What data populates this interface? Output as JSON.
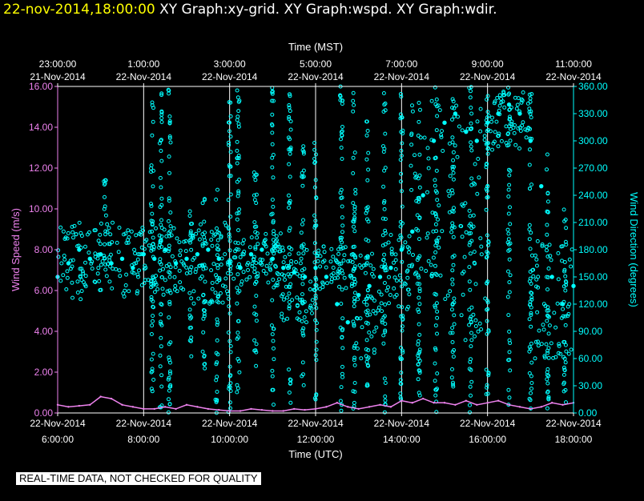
{
  "header": {
    "timestamp": "22-nov-2014,18:00:00",
    "graphs": "XY Graph:xy-grid.  XY Graph:wspd.  XY Graph:wdir."
  },
  "notice": "REAL-TIME DATA, NOT CHECKED FOR QUALITY",
  "colors": {
    "speed": "#ee82ee",
    "direction": "#00ffff",
    "axis_left": "#ee82ee",
    "axis_right": "#00ffff",
    "grid": "#ffffff"
  },
  "chart_data": {
    "type": "scatter",
    "top_axis": {
      "label": "Time (MST)",
      "ticks": [
        [
          "23:00:00",
          "21-Nov-2014"
        ],
        [
          "1:00:00",
          "22-Nov-2014"
        ],
        [
          "3:00:00",
          "22-Nov-2014"
        ],
        [
          "5:00:00",
          "22-Nov-2014"
        ],
        [
          "7:00:00",
          "22-Nov-2014"
        ],
        [
          "9:00:00",
          "22-Nov-2014"
        ],
        [
          "11:00:00",
          "22-Nov-2014"
        ]
      ]
    },
    "bottom_axis": {
      "label": "Time (UTC)",
      "ticks": [
        [
          "22-Nov-2014",
          "6:00:00"
        ],
        [
          "22-Nov-2014",
          "8:00:00"
        ],
        [
          "22-Nov-2014",
          "10:00:00"
        ],
        [
          "22-Nov-2014",
          "12:00:00"
        ],
        [
          "22-Nov-2014",
          "14:00:00"
        ],
        [
          "22-Nov-2014",
          "16:00:00"
        ],
        [
          "22-Nov-2014",
          "18:00:00"
        ]
      ]
    },
    "x_unit": "hours UTC",
    "xlim": [
      6,
      18
    ],
    "grid_hours": [
      8,
      10,
      12,
      14,
      16,
      18
    ],
    "y_left": {
      "label": "Wind Speed (m/s)",
      "ylim": [
        0,
        16
      ],
      "ticks": [
        "0.00",
        "2.00",
        "4.00",
        "6.00",
        "8.00",
        "10.00",
        "12.00",
        "14.00",
        "16.00"
      ]
    },
    "y_right": {
      "label": "Wind Direction (degrees)",
      "ylim": [
        0,
        360
      ],
      "ticks": [
        "0.00",
        "30.00",
        "60.00",
        "90.00",
        "120.00",
        "150.00",
        "180.00",
        "210.00",
        "240.00",
        "270.00",
        "300.00",
        "330.00",
        "360.00"
      ]
    },
    "series": [
      {
        "name": "wspd",
        "axis": "left",
        "x": [
          6.0,
          6.25,
          6.5,
          6.75,
          7.0,
          7.25,
          7.5,
          7.75,
          8.0,
          8.25,
          8.5,
          8.75,
          9.0,
          9.25,
          9.5,
          9.75,
          10.0,
          10.25,
          10.5,
          10.75,
          11.0,
          11.25,
          11.5,
          11.75,
          12.0,
          12.25,
          12.5,
          12.75,
          13.0,
          13.25,
          13.5,
          13.75,
          14.0,
          14.25,
          14.5,
          14.75,
          15.0,
          15.25,
          15.5,
          15.75,
          16.0,
          16.25,
          16.5,
          16.75,
          17.0,
          17.25,
          17.5,
          17.75,
          18.0
        ],
        "values": [
          0.4,
          0.3,
          0.35,
          0.4,
          0.8,
          0.7,
          0.4,
          0.3,
          0.2,
          0.2,
          0.3,
          0.2,
          0.4,
          0.3,
          0.2,
          0.15,
          0.1,
          0.1,
          0.2,
          0.15,
          0.1,
          0.1,
          0.2,
          0.15,
          0.2,
          0.3,
          0.5,
          0.3,
          0.2,
          0.3,
          0.4,
          0.3,
          0.6,
          0.5,
          0.7,
          0.5,
          0.5,
          0.4,
          0.6,
          0.4,
          0.5,
          0.6,
          0.4,
          0.3,
          0.2,
          0.3,
          0.5,
          0.4,
          0.5
        ]
      },
      {
        "name": "wdir",
        "axis": "right",
        "x": [
          6.0,
          6.25,
          6.5,
          6.75,
          7.0,
          7.25,
          7.5,
          7.75,
          8.0,
          8.25,
          8.5,
          8.75,
          9.0,
          9.25,
          9.5,
          9.75,
          10.0,
          10.25,
          10.5,
          10.75,
          11.0,
          11.25,
          11.5,
          11.75,
          12.0,
          12.25,
          12.5,
          12.75,
          13.0,
          13.25,
          13.5,
          13.75,
          14.0,
          14.25,
          14.5,
          14.75,
          15.0,
          15.25,
          15.5,
          15.75,
          16.0,
          16.25,
          16.5,
          16.75,
          17.0,
          17.25,
          17.5,
          17.75,
          18.0
        ],
        "values": [
          150,
          165,
          180,
          170,
          175,
          165,
          170,
          160,
          175,
          170,
          180,
          165,
          170,
          175,
          180,
          170,
          165,
          160,
          175,
          180,
          170,
          160,
          155,
          150,
          160,
          150,
          120,
          100,
          130,
          140,
          150,
          160,
          180,
          200,
          240,
          300,
          320,
          330,
          310,
          300,
          320,
          330,
          340,
          330,
          300,
          250,
          150,
          120,
          140
        ]
      }
    ],
    "band_segments": [
      {
        "x": [
          6.0,
          6.8
        ],
        "dir_range": [
          125,
          210
        ]
      },
      {
        "x": [
          6.8,
          7.4
        ],
        "dir_range": [
          135,
          210
        ]
      },
      {
        "x": [
          7.4,
          8.2
        ],
        "dir_range": [
          125,
          205
        ]
      },
      {
        "x": [
          8.2,
          9.0
        ],
        "dir_range": [
          130,
          205
        ]
      },
      {
        "x": [
          9.0,
          10.0
        ],
        "dir_range": [
          120,
          210
        ]
      },
      {
        "x": [
          10.0,
          11.2
        ],
        "dir_range": [
          140,
          200
        ]
      },
      {
        "x": [
          11.2,
          12.0
        ],
        "dir_range": [
          100,
          190
        ]
      },
      {
        "x": [
          12.0,
          12.9
        ],
        "dir_range": [
          135,
          185
        ]
      },
      {
        "x": [
          12.9,
          13.6
        ],
        "dir_range": [
          60,
          180
        ]
      },
      {
        "x": [
          13.6,
          14.2
        ],
        "dir_range": [
          110,
          200
        ]
      },
      {
        "x": [
          14.2,
          15.0
        ],
        "dir_range": [
          150,
          350
        ]
      },
      {
        "x": [
          15.0,
          16.0
        ],
        "dir_range": [
          80,
          340
        ]
      },
      {
        "x": [
          16.0,
          17.0
        ],
        "dir_range": [
          290,
          360
        ]
      },
      {
        "x": [
          17.0,
          18.0
        ],
        "dir_range": [
          60,
          190
        ]
      }
    ],
    "spikes": [
      {
        "x": 7.1,
        "dir_range": [
          140,
          260
        ]
      },
      {
        "x": 8.2,
        "dir_range": [
          20,
          360
        ]
      },
      {
        "x": 8.4,
        "dir_range": [
          0,
          360
        ]
      },
      {
        "x": 8.6,
        "dir_range": [
          0,
          360
        ]
      },
      {
        "x": 9.1,
        "dir_range": [
          60,
          240
        ]
      },
      {
        "x": 9.4,
        "dir_range": [
          30,
          240
        ]
      },
      {
        "x": 9.7,
        "dir_range": [
          0,
          250
        ]
      },
      {
        "x": 10.0,
        "dir_range": [
          0,
          360
        ]
      },
      {
        "x": 10.2,
        "dir_range": [
          0,
          360
        ]
      },
      {
        "x": 10.6,
        "dir_range": [
          50,
          270
        ]
      },
      {
        "x": 11.0,
        "dir_range": [
          0,
          360
        ]
      },
      {
        "x": 11.4,
        "dir_range": [
          0,
          360
        ]
      },
      {
        "x": 11.7,
        "dir_range": [
          20,
          300
        ]
      },
      {
        "x": 12.0,
        "dir_range": [
          10,
          300
        ]
      },
      {
        "x": 12.6,
        "dir_range": [
          0,
          360
        ]
      },
      {
        "x": 12.9,
        "dir_range": [
          0,
          360
        ]
      },
      {
        "x": 13.2,
        "dir_range": [
          0,
          330
        ]
      },
      {
        "x": 13.6,
        "dir_range": [
          0,
          360
        ]
      },
      {
        "x": 14.0,
        "dir_range": [
          0,
          360
        ]
      },
      {
        "x": 14.4,
        "dir_range": [
          0,
          360
        ]
      },
      {
        "x": 14.8,
        "dir_range": [
          0,
          360
        ]
      },
      {
        "x": 15.2,
        "dir_range": [
          0,
          360
        ]
      },
      {
        "x": 15.6,
        "dir_range": [
          0,
          360
        ]
      },
      {
        "x": 16.0,
        "dir_range": [
          0,
          360
        ]
      },
      {
        "x": 16.5,
        "dir_range": [
          0,
          360
        ]
      },
      {
        "x": 17.0,
        "dir_range": [
          0,
          360
        ]
      },
      {
        "x": 17.4,
        "dir_range": [
          0,
          300
        ]
      },
      {
        "x": 17.8,
        "dir_range": [
          10,
          230
        ]
      }
    ]
  }
}
